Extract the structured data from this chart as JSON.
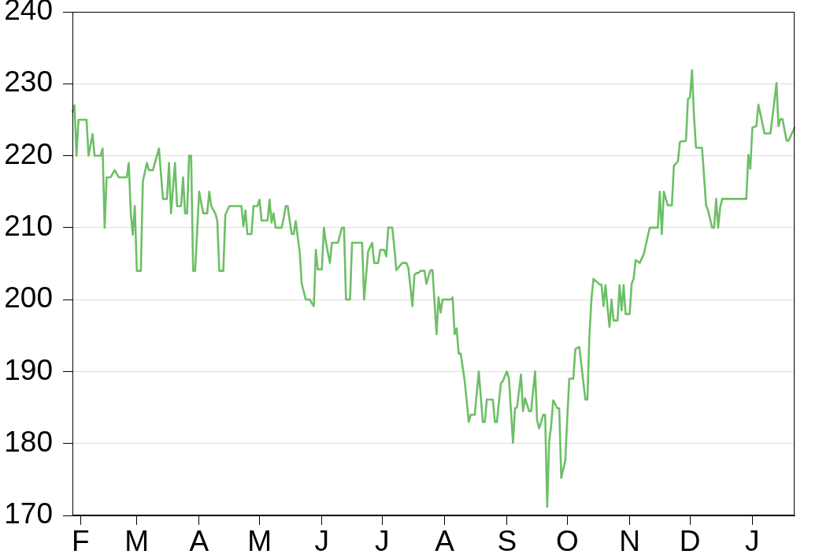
{
  "chart_data": {
    "type": "line",
    "color": "#6dbf67",
    "marker": "none",
    "line_style": "solid",
    "grid": "y",
    "legend": false,
    "categories": [
      null,
      null,
      null,
      null,
      "F",
      null,
      null,
      null,
      null,
      null,
      null,
      null,
      null,
      null,
      null,
      null,
      null,
      null,
      null,
      null,
      null,
      null,
      null,
      null,
      null,
      null,
      null,
      null,
      null,
      null,
      null,
      null,
      "M",
      null,
      null,
      null,
      null,
      null,
      null,
      null,
      null,
      null,
      null,
      null,
      null,
      null,
      null,
      null,
      null,
      null,
      null,
      null,
      null,
      null,
      null,
      null,
      null,
      null,
      null,
      null,
      null,
      null,
      null,
      "A",
      null,
      null,
      null,
      null,
      null,
      null,
      null,
      null,
      null,
      null,
      null,
      null,
      null,
      null,
      null,
      null,
      null,
      null,
      null,
      null,
      null,
      null,
      null,
      null,
      null,
      null,
      null,
      null,
      null,
      "M",
      null,
      null,
      null,
      null,
      null,
      null,
      null,
      null,
      null,
      null,
      null,
      null,
      null,
      null,
      null,
      null,
      null,
      null,
      null,
      null,
      null,
      null,
      null,
      null,
      null,
      null,
      null,
      null,
      null,
      null,
      "J",
      null,
      null,
      null,
      null,
      null,
      null,
      null,
      null,
      null,
      null,
      null,
      null,
      null,
      null,
      null,
      null,
      null,
      null,
      null,
      null,
      null,
      null,
      null,
      null,
      null,
      null,
      null,
      null,
      null,
      "J",
      null,
      null,
      null,
      null,
      null,
      null,
      null,
      null,
      null,
      null,
      null,
      null,
      null,
      null,
      null,
      null,
      null,
      null,
      null,
      null,
      null,
      null,
      null,
      null,
      null,
      null,
      null,
      null,
      null,
      null,
      "A",
      null,
      null,
      null,
      null,
      null,
      null,
      null,
      null,
      null,
      null,
      null,
      null,
      null,
      null,
      null,
      null,
      null,
      null,
      null,
      null,
      null,
      null,
      null,
      null,
      null,
      null,
      null,
      null,
      null,
      null,
      "S",
      null,
      null,
      null,
      null,
      null,
      null,
      null,
      null,
      null,
      null,
      null,
      null,
      null,
      null,
      null,
      null,
      null,
      null,
      null,
      null,
      null,
      null,
      null,
      null,
      null,
      null,
      null,
      null,
      null,
      "O",
      null,
      null,
      null,
      null,
      null,
      null,
      null,
      null,
      null,
      null,
      null,
      null,
      null,
      null,
      null,
      null,
      null,
      null,
      null,
      null,
      null,
      null,
      null,
      null,
      null,
      null,
      null,
      null,
      null,
      null,
      "N",
      null,
      null,
      null,
      null,
      null,
      null,
      null,
      null,
      null,
      null,
      null,
      null,
      null,
      null,
      null,
      null,
      null,
      null,
      null,
      null,
      null,
      null,
      null,
      null,
      null,
      null,
      null,
      null,
      null,
      "D",
      null,
      null,
      null,
      null,
      null,
      null,
      null,
      null,
      null,
      null,
      null,
      null,
      null,
      null,
      null,
      null,
      null,
      null,
      null,
      null,
      null,
      null,
      null,
      null,
      null,
      null,
      null,
      null,
      null,
      null,
      "J",
      null,
      null,
      null,
      null,
      null,
      null,
      null,
      null,
      null,
      null,
      null,
      null,
      null,
      null,
      null,
      null,
      null,
      null,
      null,
      null,
      null
    ],
    "values": [
      226.1,
      227,
      220,
      225,
      225,
      225,
      225,
      225,
      220,
      221.5,
      223,
      220,
      220,
      220,
      220,
      221,
      210,
      217,
      217,
      217,
      217.5,
      218,
      217.5,
      217,
      217,
      217,
      217,
      217,
      219,
      212,
      209,
      213,
      204,
      204,
      204,
      216.4,
      217.7,
      219,
      218,
      218,
      218,
      219,
      220,
      221,
      217.5,
      214,
      214,
      214,
      219,
      212,
      215.5,
      219,
      213,
      213,
      213,
      217,
      212,
      212,
      220,
      220,
      204,
      204,
      209.5,
      215,
      213.5,
      212,
      212,
      212,
      215,
      213,
      212.5,
      212,
      211,
      204,
      204,
      204,
      211.8,
      212.4,
      213,
      213,
      213,
      213,
      213,
      213,
      213,
      210.2,
      212.4,
      209.1,
      209.1,
      209.1,
      213,
      213,
      213,
      213.9,
      211,
      211,
      211,
      211,
      213.9,
      210.7,
      212,
      210,
      210,
      210,
      210,
      211.3,
      213,
      213,
      211,
      209.1,
      209.1,
      210.9,
      208.7,
      206.5,
      202.2,
      201.1,
      200,
      200,
      200,
      199.5,
      199.1,
      206.9,
      204.2,
      204.2,
      204.2,
      210,
      208,
      206.5,
      205.1,
      207.9,
      207.9,
      207.9,
      207.9,
      209,
      210,
      210,
      200,
      200,
      200,
      207.9,
      207.9,
      207.9,
      207.9,
      207.9,
      207.9,
      200,
      203.4,
      206.7,
      207.3,
      207.9,
      205.1,
      205.1,
      205.1,
      206.9,
      206.9,
      206.9,
      206,
      210,
      210,
      210,
      207.3,
      204.1,
      204.4,
      204.8,
      205.1,
      205.1,
      205.1,
      204.4,
      201.8,
      199.1,
      203.4,
      203.7,
      203.7,
      204,
      204,
      204,
      202.2,
      203.2,
      204.1,
      204.1,
      199.7,
      195.2,
      200.3,
      198.2,
      200,
      200,
      200,
      200,
      200,
      200.3,
      195.2,
      196,
      192.5,
      192.5,
      190.6,
      188.7,
      185.9,
      183,
      184,
      184,
      184,
      187,
      190,
      186.5,
      183,
      183,
      186.1,
      186.1,
      186.1,
      186.1,
      183,
      183,
      185.7,
      188.4,
      188.7,
      189.4,
      190,
      189,
      184.6,
      180.1,
      184.9,
      185,
      187.3,
      189.6,
      184.5,
      186.3,
      185.4,
      184.5,
      184.5,
      187.3,
      190,
      183.2,
      182.1,
      183,
      184,
      184,
      171.2,
      180.3,
      182.5,
      186,
      185.5,
      184.9,
      184.9,
      175.2,
      176.4,
      177.6,
      183.6,
      189,
      189,
      189,
      193.1,
      193.3,
      193.4,
      190.9,
      188.5,
      186.1,
      186.1,
      195,
      200,
      202.9,
      202.6,
      202.4,
      202.1,
      202.1,
      199.1,
      202,
      198.9,
      196.2,
      200,
      197.1,
      197.1,
      197.1,
      202,
      198.5,
      202,
      198,
      198,
      198,
      202.2,
      202.9,
      205.5,
      205.3,
      205.1,
      205.7,
      206.3,
      207.5,
      208.8,
      210,
      210,
      210,
      210,
      210,
      215,
      209.1,
      215,
      214,
      213.1,
      213.1,
      213.1,
      218.6,
      218.9,
      219.2,
      221.9,
      222,
      222,
      222.1,
      227.9,
      228.1,
      231.9,
      225.5,
      221.1,
      221.1,
      221.1,
      221.1,
      217.1,
      213.1,
      212.4,
      211.2,
      210,
      210,
      214,
      210,
      212.8,
      214,
      214,
      214,
      214,
      214,
      214,
      214,
      214,
      214,
      214,
      214,
      214,
      214,
      220.1,
      218.2,
      223.9,
      224,
      224.1,
      227.1,
      225.8,
      224.5,
      223.1,
      223.1,
      223.1,
      223.1,
      225.4,
      227.7,
      230.1,
      224.1,
      225.1,
      225.1,
      223.6,
      222.1,
      222.1,
      222.7,
      223.3,
      223.9
    ],
    "ylim": [
      170,
      240
    ],
    "yticks": [
      170,
      180,
      190,
      200,
      210,
      220,
      230,
      240
    ]
  }
}
